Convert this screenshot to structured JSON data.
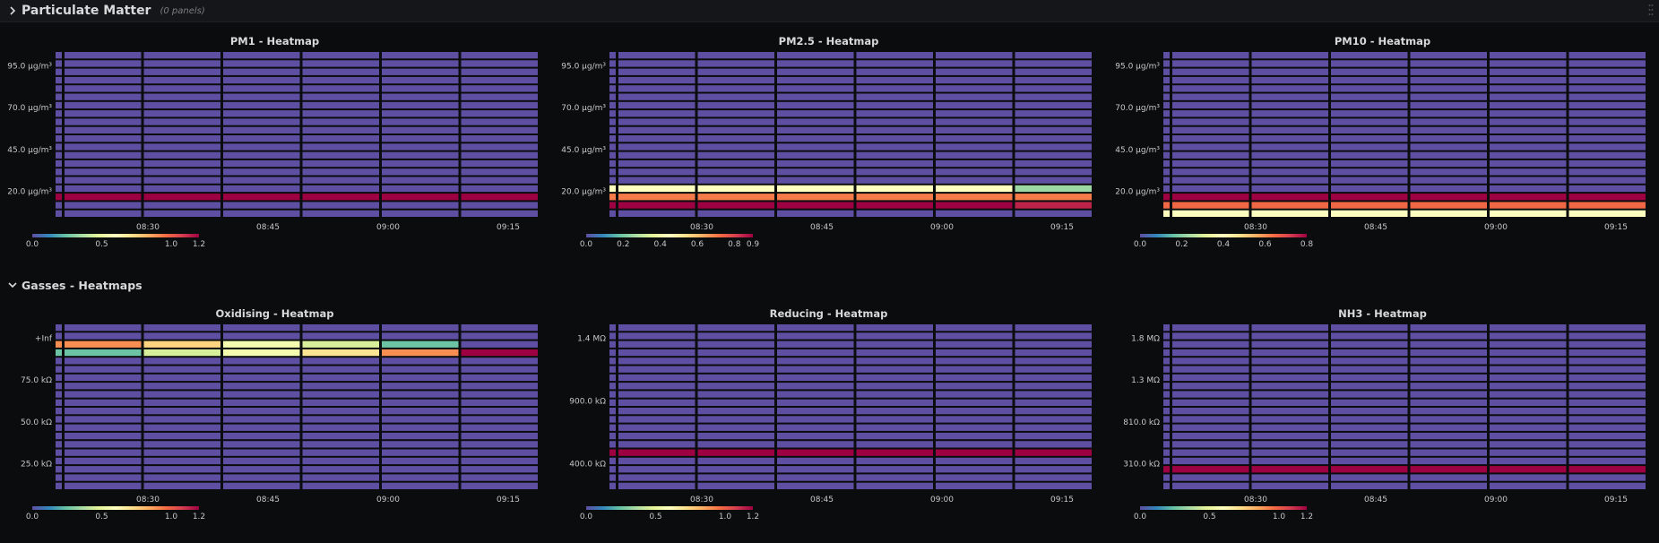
{
  "rows": {
    "particulate": {
      "title": "Particulate Matter",
      "subtitle": "(0 panels)",
      "collapsed": true
    },
    "gasses": {
      "title": "Gasses - Heatmaps",
      "collapsed": false
    }
  },
  "colors": {
    "background": "#0b0c0e",
    "cell_low": "#5e4fa2"
  },
  "panels": {
    "pm1": {
      "title": "PM1 - Heatmap"
    },
    "pm25": {
      "title": "PM2.5 - Heatmap"
    },
    "pm10": {
      "title": "PM10 - Heatmap"
    },
    "oxidising": {
      "title": "Oxidising - Heatmap"
    },
    "reducing": {
      "title": "Reducing - Heatmap"
    },
    "nh3": {
      "title": "NH3 - Heatmap"
    }
  },
  "chart_data": [
    {
      "id": "pm1",
      "type": "heatmap",
      "title": "PM1 - Heatmap",
      "x_ticks": [
        "08:30",
        "08:45",
        "09:00",
        "09:15"
      ],
      "y_ticks": [
        "95.0 µg/m³",
        "70.0 µg/m³",
        "45.0 µg/m³",
        "20.0 µg/m³"
      ],
      "y_buckets": 20,
      "x_columns": 6,
      "highlight_rows": [
        {
          "bucket": 2,
          "values": [
            1.2,
            1.2,
            1.2,
            1.2,
            1.2,
            1.2
          ]
        }
      ],
      "legend": {
        "min": 0,
        "max": 1.2,
        "ticks": [
          "0.0",
          "0.5",
          "1.0",
          "1.2"
        ]
      }
    },
    {
      "id": "pm25",
      "type": "heatmap",
      "title": "PM2.5 - Heatmap",
      "x_ticks": [
        "08:30",
        "08:45",
        "09:00",
        "09:15"
      ],
      "y_ticks": [
        "95.0 µg/m³",
        "70.0 µg/m³",
        "45.0 µg/m³",
        "20.0 µg/m³"
      ],
      "y_buckets": 20,
      "x_columns": 6,
      "highlight_rows": [
        {
          "bucket": 1,
          "values": [
            0.9,
            0.9,
            0.9,
            0.9,
            0.9,
            0.85
          ]
        },
        {
          "bucket": 2,
          "values": [
            0.7,
            0.7,
            0.7,
            0.7,
            0.7,
            0.7
          ]
        },
        {
          "bucket": 3,
          "values": [
            0.45,
            0.45,
            0.45,
            0.45,
            0.45,
            0.25
          ]
        }
      ],
      "legend": {
        "min": 0,
        "max": 0.9,
        "ticks": [
          "0.0",
          "0.2",
          "0.4",
          "0.6",
          "0.8",
          "0.9"
        ]
      }
    },
    {
      "id": "pm10",
      "type": "heatmap",
      "title": "PM10 - Heatmap",
      "x_ticks": [
        "08:30",
        "08:45",
        "09:00",
        "09:15"
      ],
      "y_ticks": [
        "95.0 µg/m³",
        "70.0 µg/m³",
        "45.0 µg/m³",
        "20.0 µg/m³"
      ],
      "y_buckets": 20,
      "x_columns": 6,
      "highlight_rows": [
        {
          "bucket": 0,
          "values": [
            0.4,
            0.4,
            0.4,
            0.4,
            0.4,
            0.4
          ]
        },
        {
          "bucket": 1,
          "values": [
            0.65,
            0.65,
            0.65,
            0.65,
            0.65,
            0.65
          ]
        },
        {
          "bucket": 2,
          "values": [
            0.8,
            0.8,
            0.8,
            0.8,
            0.8,
            0.8
          ]
        }
      ],
      "legend": {
        "min": 0,
        "max": 0.8,
        "ticks": [
          "0.0",
          "0.2",
          "0.4",
          "0.6",
          "0.8"
        ]
      }
    },
    {
      "id": "oxidising",
      "type": "heatmap",
      "title": "Oxidising - Heatmap",
      "x_ticks": [
        "08:30",
        "08:45",
        "09:00",
        "09:15"
      ],
      "y_ticks": [
        "+Inf",
        "75.0 kΩ",
        "50.0 kΩ",
        "25.0 kΩ"
      ],
      "y_buckets": 20,
      "x_columns": 6,
      "highlight_rows": [
        {
          "bucket": 17,
          "values": [
            0.9,
            0.75,
            0.55,
            0.45,
            0.25,
            0
          ]
        },
        {
          "bucket": 16,
          "values": [
            0.25,
            0.45,
            0.55,
            0.7,
            0.9,
            1.2
          ]
        }
      ],
      "legend": {
        "min": 0,
        "max": 1.2,
        "ticks": [
          "0.0",
          "0.5",
          "1.0",
          "1.2"
        ]
      }
    },
    {
      "id": "reducing",
      "type": "heatmap",
      "title": "Reducing - Heatmap",
      "x_ticks": [
        "08:30",
        "08:45",
        "09:00",
        "09:15"
      ],
      "y_ticks": [
        "1.4 MΩ",
        "900.0 kΩ",
        "400.0 kΩ"
      ],
      "y_buckets": 20,
      "x_columns": 6,
      "highlight_rows": [
        {
          "bucket": 4,
          "values": [
            1.2,
            1.2,
            1.2,
            1.2,
            1.2,
            1.2
          ]
        }
      ],
      "legend": {
        "min": 0,
        "max": 1.2,
        "ticks": [
          "0.0",
          "0.5",
          "1.0",
          "1.2"
        ]
      }
    },
    {
      "id": "nh3",
      "type": "heatmap",
      "title": "NH3 - Heatmap",
      "x_ticks": [
        "08:30",
        "08:45",
        "09:00",
        "09:15"
      ],
      "y_ticks": [
        "1.8 MΩ",
        "1.3 MΩ",
        "810.0 kΩ",
        "310.0 kΩ"
      ],
      "y_buckets": 20,
      "x_columns": 6,
      "highlight_rows": [
        {
          "bucket": 2,
          "values": [
            1.2,
            1.2,
            1.2,
            1.2,
            1.2,
            1.2
          ]
        }
      ],
      "legend": {
        "min": 0,
        "max": 1.2,
        "ticks": [
          "0.0",
          "0.5",
          "1.0",
          "1.2"
        ]
      }
    }
  ]
}
